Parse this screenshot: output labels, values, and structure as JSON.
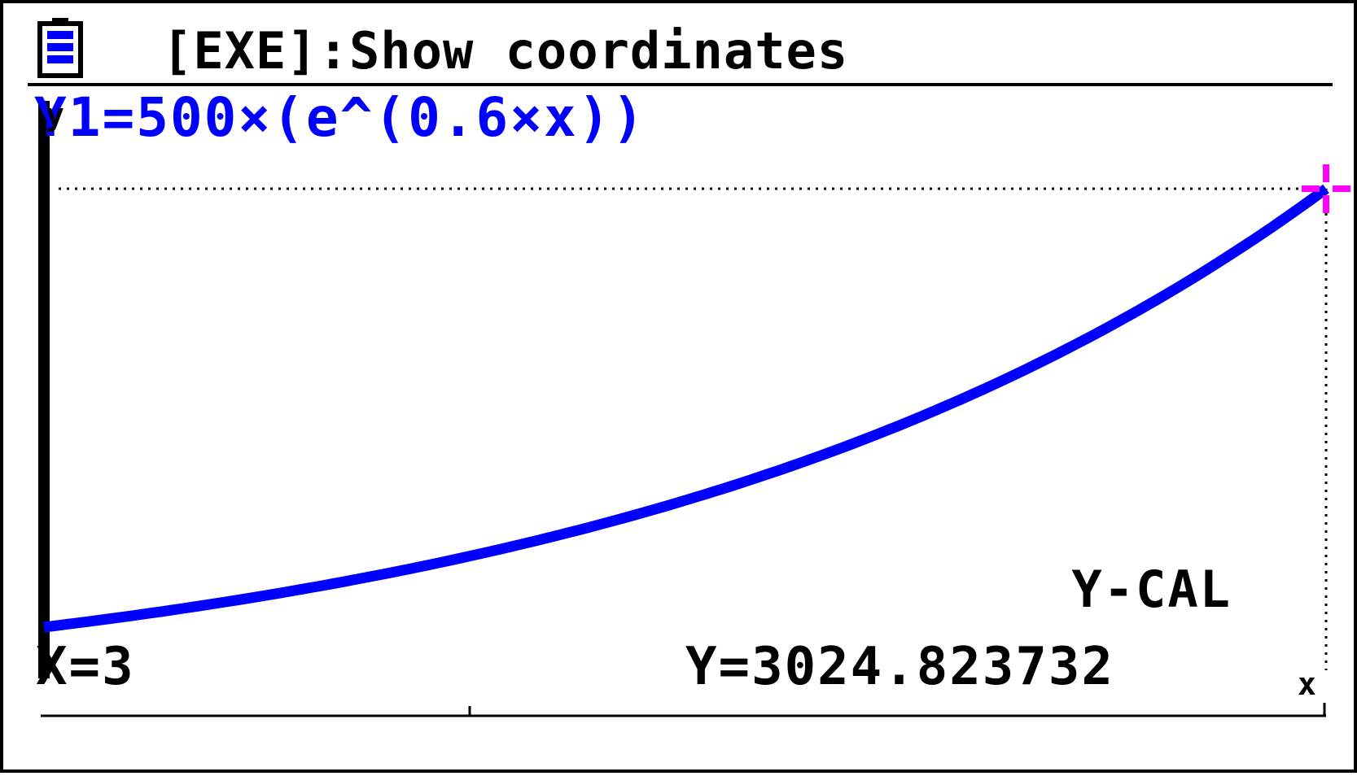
{
  "header": {
    "title": "[EXE]:Show coordinates",
    "battery_icon": "battery-full-icon"
  },
  "function_label": "Y1=500×(e^(0.6×x))",
  "mode_label": "Y-CAL",
  "readout": {
    "x_text": "X=3",
    "y_text": "Y=3024.823732"
  },
  "axis_labels": {
    "x": "x",
    "y": "y"
  },
  "colors": {
    "curve": "#0000ff",
    "cursor": "#ff00ff",
    "text": "#000000",
    "background": "#ffffff"
  },
  "chart_data": {
    "type": "line",
    "title": "",
    "xlabel": "x",
    "ylabel": "y",
    "xlim": [
      0,
      3
    ],
    "ylim": [
      0,
      3024.823732
    ],
    "grid": false,
    "series": [
      {
        "name": "Y1",
        "x": [
          0,
          0.25,
          0.5,
          0.75,
          1,
          1.25,
          1.5,
          1.75,
          2,
          2.25,
          2.5,
          2.75,
          3
        ],
        "values": [
          500,
          580.92,
          674.93,
          784.16,
          911.06,
          1058.5,
          1229.8,
          1428.82,
          1660.06,
          1928.71,
          2240.84,
          2603.48,
          3024.82
        ]
      }
    ],
    "cursor": {
      "x": 3,
      "y": 3024.823732
    }
  }
}
